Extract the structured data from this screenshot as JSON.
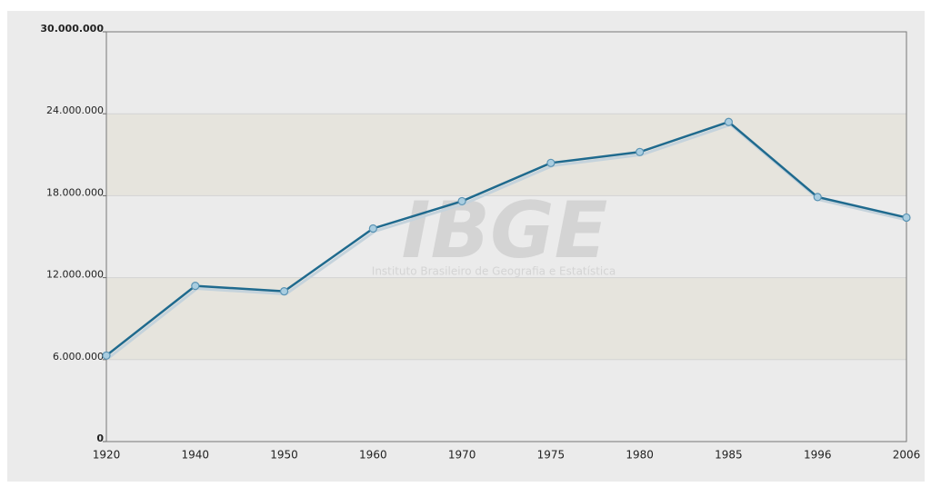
{
  "chart_data": {
    "type": "line",
    "watermark": "IBGE",
    "watermark_subtitle": "Instituto Brasileiro de Geografia e Estatística",
    "categories": [
      "1920",
      "1940",
      "1950",
      "1960",
      "1970",
      "1975",
      "1980",
      "1985",
      "1996",
      "2006"
    ],
    "series": [
      {
        "color": "#1f6a8e",
        "values": [
          6300000,
          11400000,
          11000000,
          15600000,
          17600000,
          20400000,
          21200000,
          23400000,
          17900000,
          16400000
        ]
      }
    ],
    "ylim": [
      0,
      30000000
    ],
    "yticks": [
      0,
      {
        "value": 6000000,
        "label": "6.000.000"
      },
      {
        "value": 12000000,
        "label": "12.000.000"
      },
      {
        "value": 18000000,
        "label": "18.000.000"
      },
      {
        "value": 24000000,
        "label": "24.000.000"
      },
      {
        "value": 30000000,
        "label": "30.000.000"
      }
    ],
    "grid": true
  }
}
